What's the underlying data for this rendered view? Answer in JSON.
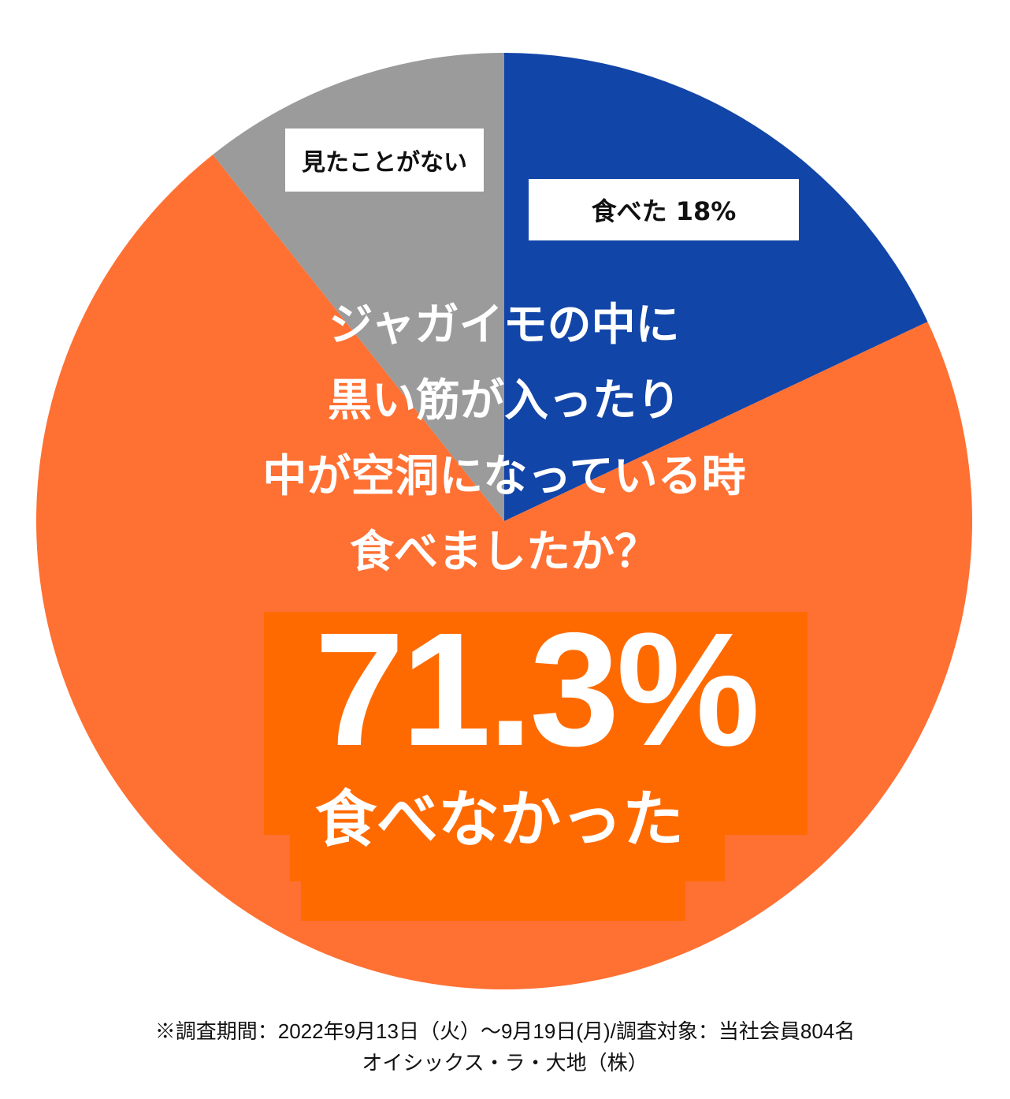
{
  "chart_data": {
    "type": "pie",
    "title": "ジャガイモの中に黒い筋が入ったり中が空洞になっている時食べましたか？",
    "categories": [
      "食べた",
      "食べなかった",
      "見たことがない"
    ],
    "values": [
      18,
      71.3,
      10.7
    ],
    "colors": [
      "#1245a8",
      "#ff7033",
      "#9b9b9b"
    ],
    "start_angle_deg": 0,
    "direction": "clockwise",
    "slice_labels": [
      "食べた 18%",
      "71.3% 食べなかった",
      "見たことがない"
    ],
    "legend": "none"
  },
  "labels": {
    "gray": "見たことがない",
    "blue": "食べた 18%"
  },
  "question": {
    "line1": "ジャガイモの中に",
    "line2": "黒い筋が入ったり",
    "line3": "中が空洞になっている時",
    "line4": "食べましたか？"
  },
  "highlight": {
    "percent": "71.3%",
    "label": "食べなかった"
  },
  "footnote": {
    "line1": "※調査期間：2022年9月13日（火）〜9月19日(月)/調査対象：当社会員804名",
    "line2": "オイシックス・ラ・大地（株）"
  }
}
